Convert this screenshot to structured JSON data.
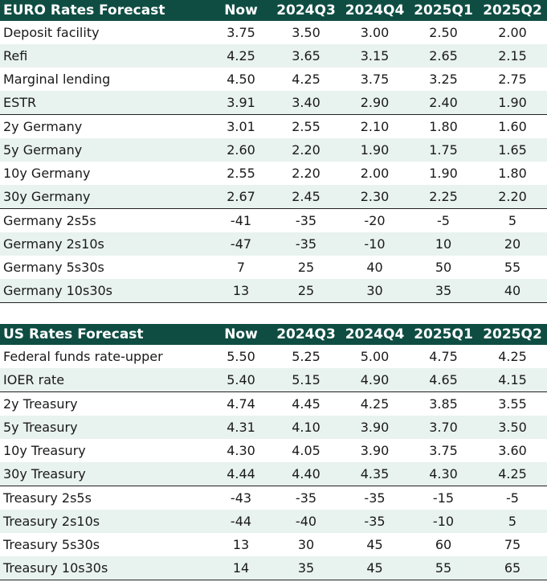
{
  "chart_data": [
    {
      "type": "table",
      "title": "EURO Rates Forecast",
      "columns": [
        "Now",
        "2024Q3",
        "2024Q4",
        "2025Q1",
        "2025Q2"
      ],
      "rows": [
        {
          "label": "Deposit facility",
          "values": [
            "3.75",
            "3.50",
            "3.00",
            "2.50",
            "2.00"
          ]
        },
        {
          "label": "Refi",
          "values": [
            "4.25",
            "3.65",
            "3.15",
            "2.65",
            "2.15"
          ]
        },
        {
          "label": "Marginal lending",
          "values": [
            "4.50",
            "4.25",
            "3.75",
            "3.25",
            "2.75"
          ]
        },
        {
          "label": "ESTR",
          "values": [
            "3.91",
            "3.40",
            "2.90",
            "2.40",
            "1.90"
          ]
        },
        {
          "label": "2y Germany",
          "values": [
            "3.01",
            "2.55",
            "2.10",
            "1.80",
            "1.60"
          ]
        },
        {
          "label": "5y Germany",
          "values": [
            "2.60",
            "2.20",
            "1.90",
            "1.75",
            "1.65"
          ]
        },
        {
          "label": "10y Germany",
          "values": [
            "2.55",
            "2.20",
            "2.00",
            "1.90",
            "1.80"
          ]
        },
        {
          "label": "30y Germany",
          "values": [
            "2.67",
            "2.45",
            "2.30",
            "2.25",
            "2.20"
          ]
        },
        {
          "label": "Germany 2s5s",
          "values": [
            "-41",
            "-35",
            "-20",
            "-5",
            "5"
          ]
        },
        {
          "label": "Germany 2s10s",
          "values": [
            "-47",
            "-35",
            "-10",
            "10",
            "20"
          ]
        },
        {
          "label": "Germany 5s30s",
          "values": [
            "7",
            "25",
            "40",
            "50",
            "55"
          ]
        },
        {
          "label": "Germany 10s30s",
          "values": [
            "13",
            "25",
            "30",
            "35",
            "40"
          ]
        }
      ]
    },
    {
      "type": "table",
      "title": "US Rates Forecast",
      "columns": [
        "Now",
        "2024Q3",
        "2024Q4",
        "2025Q1",
        "2025Q2"
      ],
      "rows": [
        {
          "label": "Federal funds rate-upper",
          "values": [
            "5.50",
            "5.25",
            "5.00",
            "4.75",
            "4.25"
          ]
        },
        {
          "label": "IOER rate",
          "values": [
            "5.40",
            "5.15",
            "4.90",
            "4.65",
            "4.15"
          ]
        },
        {
          "label": "2y Treasury",
          "values": [
            "4.74",
            "4.45",
            "4.25",
            "3.85",
            "3.55"
          ]
        },
        {
          "label": "5y Treasury",
          "values": [
            "4.31",
            "4.10",
            "3.90",
            "3.70",
            "3.50"
          ]
        },
        {
          "label": "10y Treasury",
          "values": [
            "4.30",
            "4.05",
            "3.90",
            "3.75",
            "3.60"
          ]
        },
        {
          "label": "30y Treasury",
          "values": [
            "4.44",
            "4.40",
            "4.35",
            "4.30",
            "4.25"
          ]
        },
        {
          "label": "Treasury 2s5s",
          "values": [
            "-43",
            "-35",
            "-35",
            "-15",
            "-5"
          ]
        },
        {
          "label": "Treasury 2s10s",
          "values": [
            "-44",
            "-40",
            "-35",
            "-10",
            "5"
          ]
        },
        {
          "label": "Treasury 5s30s",
          "values": [
            "13",
            "30",
            "45",
            "60",
            "75"
          ]
        },
        {
          "label": "Treasury 10s30s",
          "values": [
            "14",
            "35",
            "45",
            "55",
            "65"
          ]
        }
      ]
    }
  ],
  "colors": {
    "header_bg": "#0f4d43",
    "header_text": "#ffffff",
    "row_shade": "#e8f2ee"
  }
}
